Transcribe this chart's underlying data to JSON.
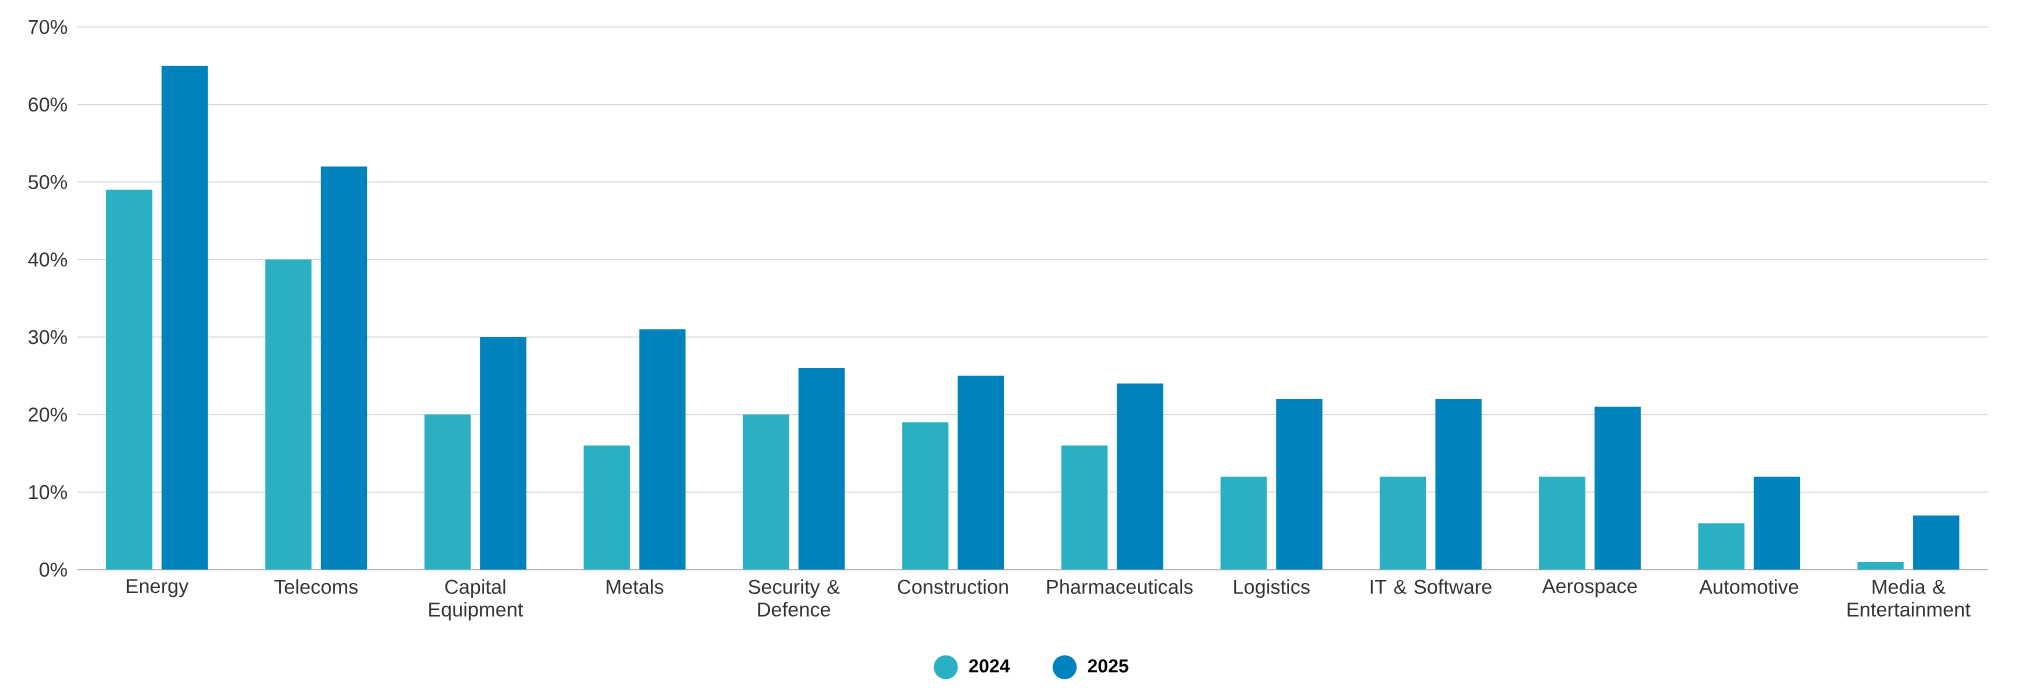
{
  "chart_data": {
    "type": "bar",
    "categories": [
      "Energy",
      "Telecoms",
      "Capital Equipment",
      "Metals",
      "Security & Defence",
      "Construction",
      "Pharmaceuticals",
      "Logistics",
      "IT & Software",
      "Aerospace",
      "Automotive",
      "Media & Entertainment"
    ],
    "series": [
      {
        "name": "2024",
        "color": "#2bb0c3",
        "values": [
          49,
          40,
          20,
          16,
          20,
          19,
          16,
          12,
          12,
          12,
          6,
          1
        ]
      },
      {
        "name": "2025",
        "color": "#0083bc",
        "values": [
          65,
          52,
          30,
          31,
          26,
          25,
          24,
          22,
          22,
          21,
          12,
          7
        ]
      }
    ],
    "ylim": [
      0,
      70
    ],
    "yticks": [
      {
        "value": 0,
        "label": "0%"
      },
      {
        "value": 10,
        "label": "10%"
      },
      {
        "value": 20,
        "label": "20%"
      },
      {
        "value": 30,
        "label": "30%"
      },
      {
        "value": 40,
        "label": "40%"
      },
      {
        "value": 50,
        "label": "50%"
      },
      {
        "value": 60,
        "label": "60%"
      },
      {
        "value": 70,
        "label": "70%"
      }
    ],
    "grid": "y",
    "legend": "bottom"
  }
}
